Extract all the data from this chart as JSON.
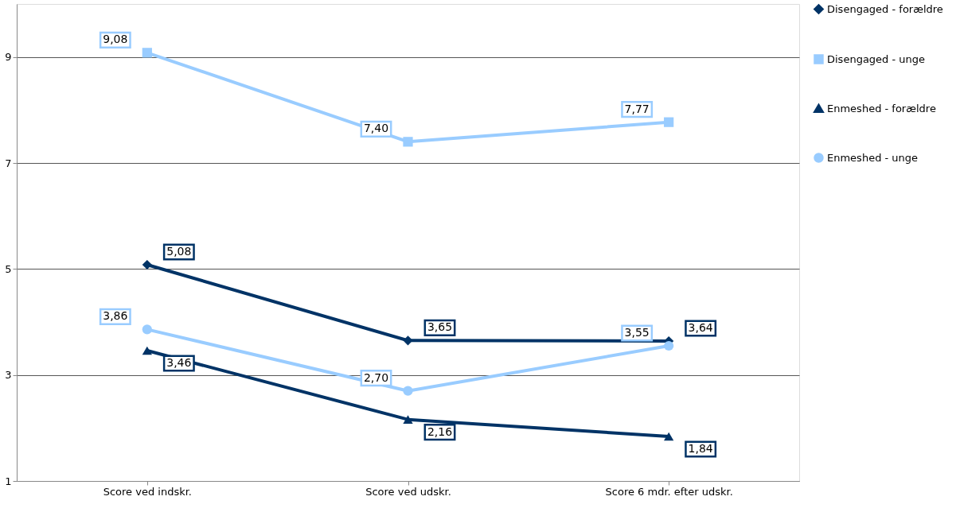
{
  "chart_data": {
    "type": "line",
    "categories": [
      "Score ved indskr.",
      "Score ved udskr.",
      "Score 6 mdr. efter udskr."
    ],
    "ylim": [
      1,
      10
    ],
    "yticks": [
      1,
      3,
      5,
      7,
      9
    ],
    "grid": "y",
    "legend": "right",
    "line_style": "solid",
    "series": [
      {
        "name": "Disengaged - forældre",
        "color": "#003366",
        "marker": "diamond",
        "values": [
          5.08,
          3.65,
          3.64
        ],
        "value_labels": [
          "5,08",
          "3,65",
          "3,64"
        ]
      },
      {
        "name": "Disengaged - unge",
        "color": "#99ccff",
        "marker": "square",
        "values": [
          9.08,
          7.4,
          7.77
        ],
        "value_labels": [
          "9,08",
          "7,40",
          "7,77"
        ]
      },
      {
        "name": "Enmeshed - forældre",
        "color": "#003366",
        "marker": "triangle",
        "values": [
          3.46,
          2.16,
          1.84
        ],
        "value_labels": [
          "3,46",
          "2,16",
          "1,84"
        ]
      },
      {
        "name": "Enmeshed - unge",
        "color": "#99ccff",
        "marker": "circle",
        "values": [
          3.86,
          2.7,
          3.55
        ],
        "value_labels": [
          "3,86",
          "2,70",
          "3,55"
        ]
      }
    ]
  }
}
